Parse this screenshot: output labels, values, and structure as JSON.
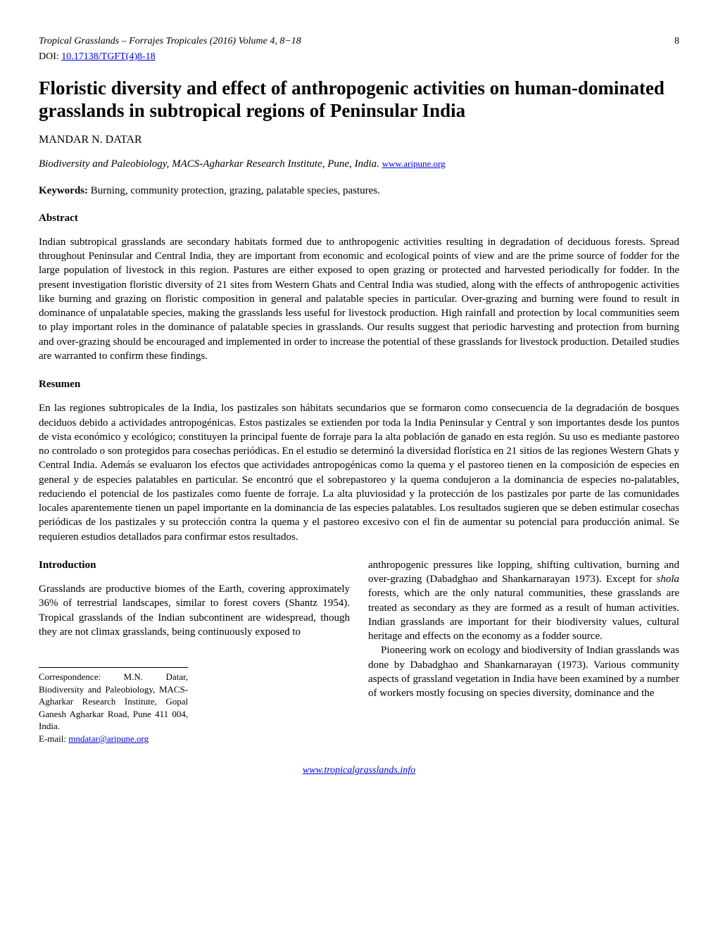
{
  "header": {
    "journal_line": "Tropical Grasslands – Forrajes Tropicales (2016) Volume 4, 8−18",
    "page_number": "8",
    "doi_label": "DOI: ",
    "doi_link_text": "10.17138/TGFT(4)8-18"
  },
  "title": "Floristic diversity and effect of anthropogenic activities on human-dominated grasslands in subtropical regions of Peninsular India",
  "author": "MANDAR N. DATAR",
  "affiliation": {
    "text": "Biodiversity and Paleobiology, MACS-Agharkar Research Institute, Pune, India. ",
    "link": "www.aripune.org"
  },
  "keywords": {
    "label": "Keywords: ",
    "text": "Burning, community protection, grazing, palatable species, pastures."
  },
  "abstract": {
    "heading": "Abstract",
    "text": "Indian subtropical grasslands are secondary habitats formed due to anthropogenic activities resulting in degradation of deciduous forests. Spread throughout Peninsular and Central India, they are important from economic and ecological points of view and are the prime source of fodder for the large population of livestock in this region. Pastures are either exposed to open grazing or protected and harvested periodically for fodder. In the present investigation floristic diversity of 21 sites from Western Ghats and Central India was studied, along with the effects of anthropogenic activities like burning and grazing on floristic composition in general and palatable species in particular. Over-grazing and burning were found to result in dominance of unpalatable species, making the grasslands less useful for livestock production. High rainfall and protection by local communities seem to play important roles in the dominance of palatable species in grasslands. Our results suggest that periodic harvesting and protection from burning and over-grazing should be encouraged and implemented in order to increase the potential of these grasslands for livestock production. Detailed studies are warranted to confirm these findings."
  },
  "resumen": {
    "heading": "Resumen",
    "text": "En las regiones subtropicales de la India, los pastizales son hábitats secundarios que se formaron como consecuencia de la degradación de bosques deciduos debido a actividades antropogénicas. Estos pastizales se extienden por toda la India Peninsular y Central y son importantes desde los puntos de vista económico y ecológico; constituyen la principal fuente de forraje para la alta población de ganado en esta región. Su uso es mediante pastoreo no controlado o son protegidos para cosechas periódicas. En el estudio se determinó la diversidad florística en 21 sitios de las regiones Western Ghats y Central India. Además se evaluaron los efectos que actividades antropogénicas como la quema y el pastoreo tienen en la composición de especies en general y de especies palatables en particular. Se encontró que el sobrepastoreo y la quema condujeron a la dominancia de especies no-palatables, reduciendo el potencial de los pastizales como fuente de forraje. La alta pluviosidad y la protección de los pastizales por parte de las comunidades locales aparentemente tienen un papel importante en la dominancia de las especies palatables. Los resultados sugieren que se deben estimular cosechas periódicas de los pastizales y su protección contra la quema y el pastoreo excesivo con el fin de aumentar su potencial para producción animal. Se requieren estudios detallados para confirmar estos resultados."
  },
  "introduction": {
    "heading": "Introduction",
    "col1_para1": "Grasslands are productive biomes of the Earth, covering approximately 36% of terrestrial landscapes, similar to forest covers (Shantz 1954). Tropical grasslands of the Indian subcontinent are widespread, though they are not climax grasslands, being continuously exposed to",
    "col2_para1": "anthropogenic pressures like lopping, shifting cultivation, burning and over-grazing (Dabadghao and Shankarnarayan 1973). Except for ",
    "col2_para1_italic": "shola",
    "col2_para1_cont": " forests, which are the only natural communities, these grasslands are treated as secondary as they are formed as a result of human activities. Indian grasslands are important for their biodiversity values, cultural heritage and effects on the economy as a fodder source.",
    "col2_para2": "Pioneering work on ecology and biodiversity of Indian grasslands was done by Dabadghao and Shankarnarayan (1973). Various community aspects of grassland vegetation in India have been examined by a number of workers mostly focusing on species diversity, dominance and the"
  },
  "correspondence": {
    "text": "Correspondence: M.N. Datar, Biodiversity and Paleobiology, MACS-Agharkar Research Institute, Gopal Ganesh Agharkar Road, Pune 411 004, India.",
    "email_label": "E-mail: ",
    "email": "mndatar@aripune.org"
  },
  "footer_link": "www.tropicalgrasslands.info"
}
